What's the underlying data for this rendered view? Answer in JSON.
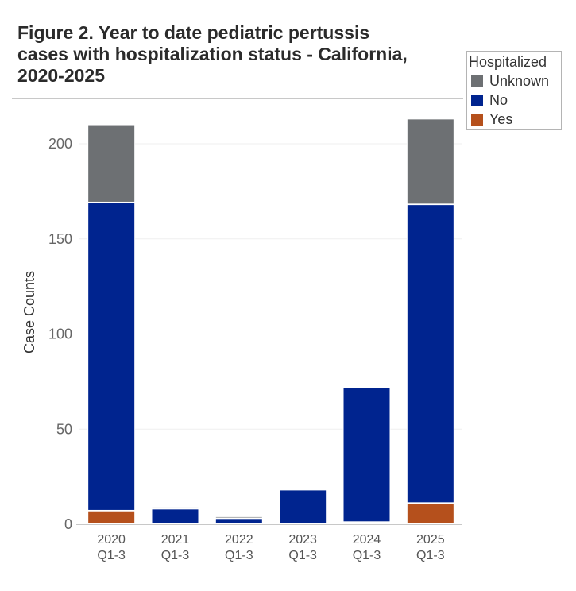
{
  "chart_data": {
    "type": "bar",
    "stacked": true,
    "title": "Figure 2. Year to date pediatric pertussis cases with hospitalization status - California, 2020-2025",
    "title_lines": [
      "Figure 2. Year to date pediatric pertussis",
      "cases with hospitalization status - California,",
      "2020-2025"
    ],
    "xlabel": "",
    "ylabel": "Case Counts",
    "ylim": [
      0,
      215
    ],
    "yticks": [
      0,
      50,
      100,
      150,
      200
    ],
    "grid": true,
    "categories": [
      [
        "2020",
        "Q1-3"
      ],
      [
        "2021",
        "Q1-3"
      ],
      [
        "2022",
        "Q1-3"
      ],
      [
        "2023",
        "Q1-3"
      ],
      [
        "2024",
        "Q1-3"
      ],
      [
        "2025",
        "Q1-3"
      ]
    ],
    "legend": {
      "title": "Hospitalized",
      "placement": "top-right"
    },
    "series": [
      {
        "name": "Yes",
        "color": "#b5501c",
        "values": [
          7,
          0,
          0,
          0,
          1,
          11
        ]
      },
      {
        "name": "No",
        "color": "#00248f",
        "values": [
          162,
          8,
          3,
          18,
          71,
          157
        ]
      },
      {
        "name": "Unknown",
        "color": "#6d7073",
        "values": [
          41,
          1,
          1,
          0,
          0,
          45
        ]
      }
    ],
    "legend_order": [
      "Unknown",
      "No",
      "Yes"
    ]
  }
}
